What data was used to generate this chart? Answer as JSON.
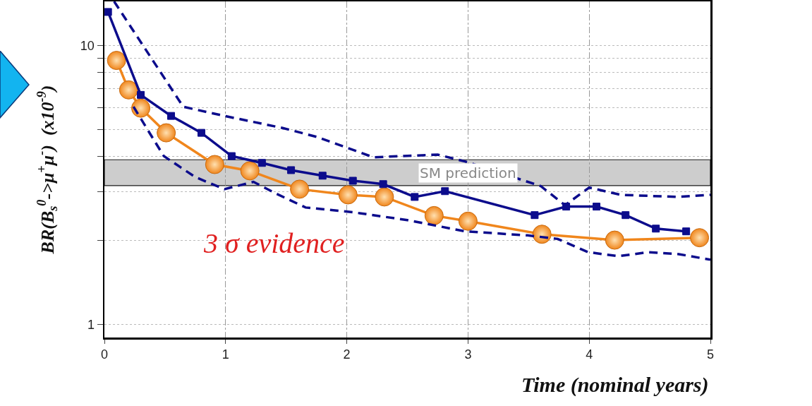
{
  "chart_data": {
    "type": "line",
    "xlabel": "Time (nominal years)",
    "ylabel": "BR(B$_{s}$$^{0}$->μ$^{+}$μ$^{-}$)  (x10$^{-9}$)",
    "log": "y",
    "grid": true,
    "xlim": [
      0,
      5
    ],
    "xticks": [
      0,
      1,
      2,
      3,
      4,
      5
    ],
    "ylim": [
      0.9,
      14.4
    ],
    "yticks": [
      1,
      {
        "value": 2,
        "label": null
      },
      {
        "value": 3,
        "label": null
      },
      {
        "value": 4,
        "label": null
      },
      {
        "value": 5,
        "label": null
      },
      {
        "value": 6,
        "label": null
      },
      {
        "value": 7,
        "label": null
      },
      {
        "value": 8,
        "label": null
      },
      {
        "value": 9,
        "label": null
      },
      10
    ],
    "bands": [
      {
        "axis": "y",
        "from": 3.15,
        "to": 3.9,
        "label": "SM prediction",
        "color": "#c8c8c8"
      }
    ],
    "annotations": [
      "3 σ evidence"
    ],
    "series": [
      {
        "color": "#f0861c",
        "marker": "circle",
        "line_style": "solid",
        "x": [
          0.1,
          0.2,
          0.3,
          0.51,
          0.91,
          1.2,
          1.61,
          2.01,
          2.31,
          2.72,
          3.0,
          3.61,
          4.21,
          4.91
        ],
        "values": [
          8.85,
          6.94,
          5.97,
          4.87,
          3.75,
          3.56,
          3.06,
          2.92,
          2.87,
          2.46,
          2.35,
          2.11,
          2.01,
          2.05
        ]
      },
      {
        "color": "#0c0c8c",
        "marker": "square",
        "line_style": "solid",
        "x": [
          0.03,
          0.3,
          0.55,
          0.8,
          1.05,
          1.3,
          1.54,
          1.8,
          2.05,
          2.3,
          2.56,
          2.81,
          3.55,
          3.81,
          4.06,
          4.3,
          4.55,
          4.8
        ],
        "values": [
          13.2,
          6.66,
          5.6,
          4.87,
          4.02,
          3.8,
          3.58,
          3.42,
          3.28,
          3.19,
          2.87,
          3.01,
          2.47,
          2.65,
          2.65,
          2.47,
          2.21,
          2.16
        ]
      },
      {
        "color": "#0c0c8c",
        "marker": "none",
        "line_style": "dashed",
        "x": [
          0.08,
          0.65,
          0.99,
          1.47,
          1.76,
          2.22,
          2.75,
          2.98,
          3.6,
          3.8,
          4.0,
          4.26,
          4.73,
          5.0
        ],
        "values": [
          14.4,
          6.04,
          5.6,
          5.07,
          4.7,
          3.98,
          4.07,
          3.84,
          3.14,
          2.68,
          3.1,
          2.92,
          2.87,
          2.92
        ]
      },
      {
        "color": "#0c0c8c",
        "marker": "none",
        "line_style": "dashed",
        "x": [
          0.24,
          0.49,
          0.75,
          0.99,
          1.23,
          1.41,
          1.66,
          2.05,
          2.5,
          2.98,
          3.49,
          3.74,
          3.99,
          4.24,
          4.49,
          4.74,
          5.0
        ],
        "values": [
          6.04,
          4.02,
          3.38,
          3.06,
          3.25,
          2.96,
          2.63,
          2.53,
          2.37,
          2.16,
          2.09,
          2.03,
          1.82,
          1.76,
          1.82,
          1.79,
          1.71
        ]
      }
    ]
  }
}
